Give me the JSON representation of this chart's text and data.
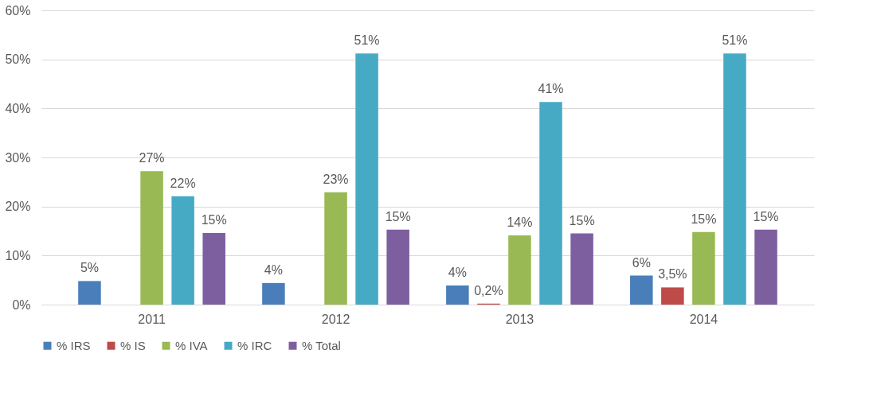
{
  "chart_data": {
    "type": "bar",
    "categories": [
      "2011",
      "2012",
      "2013",
      "2014"
    ],
    "series": [
      {
        "name": "% IRS",
        "color": "#4a7ebb",
        "values": [
          4.8,
          4.4,
          3.9,
          5.9
        ],
        "value_labels": [
          "5%",
          "4%",
          "4%",
          "6%"
        ]
      },
      {
        "name": "% IS",
        "color": "#be4b48",
        "values": [
          null,
          null,
          0.2,
          3.5
        ],
        "value_labels": [
          null,
          null,
          "0,2%",
          "3,5%"
        ]
      },
      {
        "name": "% IVA",
        "color": "#98b954",
        "values": [
          27.2,
          22.9,
          14.1,
          14.8
        ],
        "value_labels": [
          "27%",
          "23%",
          "14%",
          "15%"
        ]
      },
      {
        "name": "% IRC",
        "color": "#46aac5",
        "values": [
          22.1,
          51.2,
          41.3,
          51.2
        ],
        "value_labels": [
          "22%",
          "51%",
          "41%",
          "51%"
        ]
      },
      {
        "name": "% Total",
        "color": "#7d5fa0",
        "values": [
          14.6,
          15.3,
          14.5,
          15.3
        ],
        "value_labels": [
          "15%",
          "15%",
          "15%",
          "15%"
        ]
      }
    ],
    "ylim": [
      0,
      60
    ],
    "yticks": [
      {
        "value": 0,
        "label": "0%"
      },
      {
        "value": 10,
        "label": "10%"
      },
      {
        "value": 20,
        "label": "20%"
      },
      {
        "value": 30,
        "label": "30%"
      },
      {
        "value": 40,
        "label": "40%"
      },
      {
        "value": 50,
        "label": "50%"
      },
      {
        "value": 60,
        "label": "60%"
      }
    ],
    "grid": "y",
    "legend": "bottom"
  }
}
